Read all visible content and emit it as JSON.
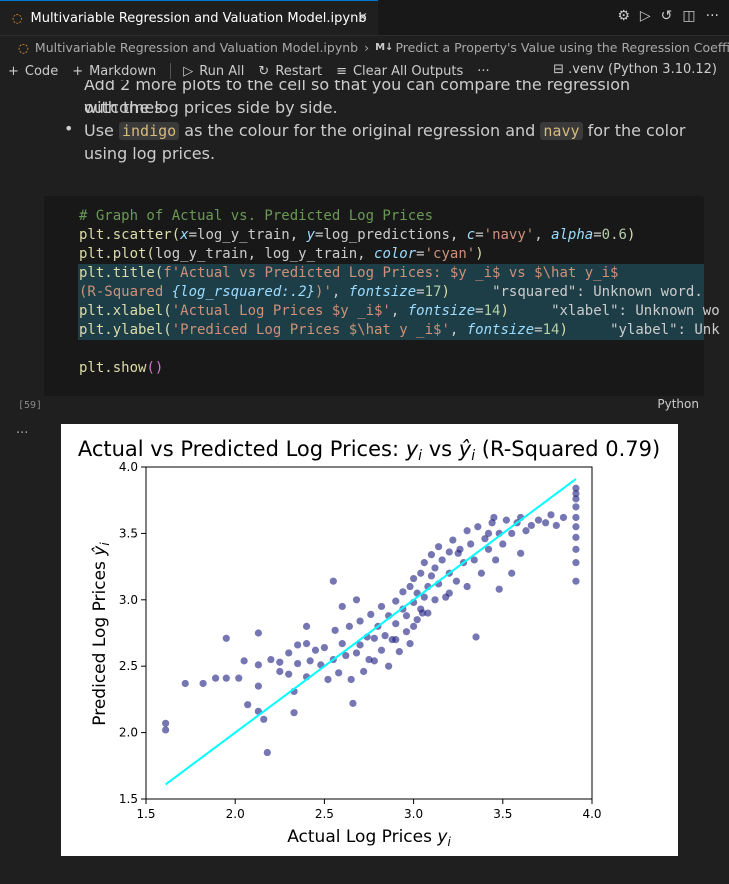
{
  "tab": {
    "title": "Multivariable Regression and Valuation Model.ipynb",
    "close": "×"
  },
  "tab_actions": [
    "⚙",
    "▷",
    "↺",
    "◫",
    "···"
  ],
  "breadcrumb": {
    "file": "Multivariable Regression and Valuation Model.ipynb",
    "md_badge": "M↓",
    "section": "Predict a Property's Value using the Regression Coeffic"
  },
  "toolbar": {
    "code": "Code",
    "markdown": "Markdown",
    "run_all": "Run All",
    "restart": "Restart",
    "clear": "Clear All Outputs",
    "more": "···",
    "kernel": ".venv (Python 3.10.12)"
  },
  "markdown": {
    "line1": "Add 2 more plots to the cell so that you can compare the regression outcomes",
    "line2": "with the log prices side by side.",
    "line3_a": "Use",
    "line3_hl1": "indigo",
    "line3_b": "as the colour for the original regression and",
    "line3_hl2": "navy",
    "line3_c": "for the color",
    "line4": "using log prices."
  },
  "code": {
    "l1": "# Graph of Actual vs. Predicted Log Prices",
    "l2_fn": "plt.scatter(",
    "l2_k1": "x",
    "l2_v1": "=log_y_train, ",
    "l2_k2": "y",
    "l2_v2": "=log_predictions, ",
    "l2_k3": "c",
    "l2_v3": "=",
    "l2_s3": "'navy'",
    "l2_v4": ", ",
    "l2_k4": "alpha",
    "l2_v5": "=",
    "l2_n5": "0.6",
    "l2_end": ")",
    "l3_fn": "plt.plot(",
    "l3_v": "log_y_train, log_y_train, ",
    "l3_k": "color",
    "l3_eq": "=",
    "l3_s": "'cyan'",
    "l3_end": ")",
    "l4_fn": "plt.title(",
    "l4_s": "f'Actual vs Predicted Log Prices: $y _i$ vs $\\hat y_i$",
    "l5_s": "(R-Squared ",
    "l5_v": "{log_rsquared:.2}",
    "l5_s2": ")'",
    "l5_v2": ", ",
    "l5_k": "fontsize",
    "l5_eq": "=",
    "l5_n": "17",
    "l5_end": ")",
    "l5_warn": "\"rsquared\": Unknown word.",
    "l6_fn": "plt.xlabel(",
    "l6_s": "'Actual Log Prices $y _i$'",
    "l6_v": ", ",
    "l6_k": "fontsize",
    "l6_eq": "=",
    "l6_n": "14",
    "l6_end": ")",
    "l6_warn": "\"xlabel\": Unknown wo",
    "l7_fn": "plt.ylabel(",
    "l7_s": "'Prediced Log Prices $\\hat y _i$'",
    "l7_v": ", ",
    "l7_k": "fontsize",
    "l7_eq": "=",
    "l7_n": "14",
    "l7_end": ")",
    "l7_warn": "\"ylabel\": Unk",
    "l9_fn": "plt.show",
    "l9_end": "()"
  },
  "cell": {
    "exec_count": "[59]",
    "language": "Python",
    "output_dots": "···"
  },
  "colors": {
    "scatter": "#1a1a80",
    "line": "#00ffff"
  },
  "chart_data": {
    "type": "scatter",
    "title": "Actual vs Predicted Log Prices: y_i vs ŷ_i (R-Squared 0.79)",
    "title_main": "Actual vs Predicted Log Prices: ",
    "title_y": "y",
    "title_i": "i",
    "title_vs": " vs ",
    "title_yhat": "ŷ",
    "title_i2": "i",
    "title_rsq": " (R-Squared 0.79)",
    "xlabel_main": "Actual Log Prices ",
    "xlabel_y": "y",
    "xlabel_i": "i",
    "ylabel_main": "Prediced Log Prices ",
    "ylabel_y": "ŷ",
    "ylabel_i": "i",
    "xlim": [
      1.5,
      4.0
    ],
    "ylim": [
      1.5,
      4.0
    ],
    "xticks": [
      "1.5",
      "2.0",
      "2.5",
      "3.0",
      "3.5",
      "4.0"
    ],
    "yticks": [
      "1.5",
      "2.0",
      "2.5",
      "3.0",
      "3.5",
      "4.0"
    ],
    "line": {
      "x": [
        1.61,
        3.91
      ],
      "y": [
        1.61,
        3.91
      ]
    },
    "points": [
      [
        1.61,
        2.07
      ],
      [
        1.61,
        2.02
      ],
      [
        1.72,
        2.37
      ],
      [
        1.82,
        2.37
      ],
      [
        1.89,
        2.41
      ],
      [
        1.95,
        2.41
      ],
      [
        2.02,
        2.41
      ],
      [
        1.95,
        2.71
      ],
      [
        2.05,
        2.54
      ],
      [
        2.13,
        2.75
      ],
      [
        2.13,
        2.51
      ],
      [
        2.13,
        2.35
      ],
      [
        2.07,
        2.21
      ],
      [
        2.13,
        2.16
      ],
      [
        2.16,
        2.1
      ],
      [
        2.18,
        1.85
      ],
      [
        2.25,
        2.53
      ],
      [
        2.25,
        2.46
      ],
      [
        2.3,
        2.6
      ],
      [
        2.3,
        2.44
      ],
      [
        2.33,
        2.31
      ],
      [
        2.33,
        2.15
      ],
      [
        2.35,
        2.66
      ],
      [
        2.35,
        2.52
      ],
      [
        2.4,
        2.67
      ],
      [
        2.4,
        2.42
      ],
      [
        2.42,
        2.54
      ],
      [
        2.45,
        2.62
      ],
      [
        2.48,
        2.51
      ],
      [
        2.5,
        2.64
      ],
      [
        2.52,
        2.4
      ],
      [
        2.55,
        2.55
      ],
      [
        2.56,
        2.77
      ],
      [
        2.58,
        2.45
      ],
      [
        2.6,
        2.67
      ],
      [
        2.62,
        2.58
      ],
      [
        2.64,
        2.8
      ],
      [
        2.66,
        2.22
      ],
      [
        2.68,
        2.6
      ],
      [
        2.7,
        2.66
      ],
      [
        2.7,
        2.84
      ],
      [
        2.72,
        2.46
      ],
      [
        2.74,
        2.72
      ],
      [
        2.76,
        2.89
      ],
      [
        2.78,
        2.54
      ],
      [
        2.78,
        2.71
      ],
      [
        2.8,
        2.8
      ],
      [
        2.82,
        2.95
      ],
      [
        2.82,
        2.62
      ],
      [
        2.84,
        2.73
      ],
      [
        2.86,
        2.88
      ],
      [
        2.86,
        2.5
      ],
      [
        2.88,
        2.7
      ],
      [
        2.9,
        2.99
      ],
      [
        2.9,
        2.82
      ],
      [
        2.92,
        2.61
      ],
      [
        2.94,
        2.93
      ],
      [
        2.94,
        3.06
      ],
      [
        2.96,
        2.76
      ],
      [
        2.96,
        2.88
      ],
      [
        2.98,
        3.1
      ],
      [
        2.98,
        2.67
      ],
      [
        3.0,
        2.98
      ],
      [
        3.0,
        3.16
      ],
      [
        3.02,
        2.85
      ],
      [
        3.02,
        3.05
      ],
      [
        3.04,
        3.2
      ],
      [
        3.04,
        2.93
      ],
      [
        3.06,
        3.02
      ],
      [
        3.06,
        3.28
      ],
      [
        3.08,
        3.1
      ],
      [
        3.08,
        2.9
      ],
      [
        3.1,
        3.18
      ],
      [
        3.1,
        3.34
      ],
      [
        3.12,
        3.0
      ],
      [
        3.12,
        3.24
      ],
      [
        3.14,
        3.4
      ],
      [
        3.14,
        3.12
      ],
      [
        3.16,
        3.3
      ],
      [
        3.18,
        3.02
      ],
      [
        3.2,
        3.36
      ],
      [
        3.2,
        3.2
      ],
      [
        3.22,
        3.45
      ],
      [
        3.24,
        3.14
      ],
      [
        3.26,
        3.38
      ],
      [
        3.28,
        3.28
      ],
      [
        3.3,
        3.52
      ],
      [
        3.3,
        3.1
      ],
      [
        3.32,
        3.42
      ],
      [
        3.34,
        3.3
      ],
      [
        3.36,
        3.55
      ],
      [
        3.38,
        3.2
      ],
      [
        3.4,
        3.46
      ],
      [
        3.42,
        3.38
      ],
      [
        3.44,
        3.58
      ],
      [
        3.46,
        3.3
      ],
      [
        3.48,
        3.5
      ],
      [
        3.5,
        3.42
      ],
      [
        3.52,
        3.6
      ],
      [
        3.55,
        3.5
      ],
      [
        3.58,
        3.58
      ],
      [
        3.6,
        3.62
      ],
      [
        3.63,
        3.52
      ],
      [
        3.66,
        3.56
      ],
      [
        3.7,
        3.6
      ],
      [
        3.74,
        3.58
      ],
      [
        3.77,
        3.64
      ],
      [
        3.8,
        3.56
      ],
      [
        3.84,
        3.62
      ],
      [
        3.91,
        3.84
      ],
      [
        3.91,
        3.8
      ],
      [
        3.91,
        3.76
      ],
      [
        3.91,
        3.7
      ],
      [
        3.91,
        3.62
      ],
      [
        3.91,
        3.55
      ],
      [
        3.91,
        3.47
      ],
      [
        3.91,
        3.38
      ],
      [
        3.91,
        3.28
      ],
      [
        3.91,
        3.14
      ],
      [
        2.55,
        3.14
      ],
      [
        3.55,
        3.2
      ],
      [
        3.6,
        3.35
      ],
      [
        3.35,
        2.72
      ],
      [
        3.48,
        3.08
      ],
      [
        2.4,
        2.8
      ],
      [
        2.6,
        2.95
      ],
      [
        2.68,
        3.0
      ],
      [
        2.2,
        2.55
      ],
      [
        3.42,
        3.5
      ],
      [
        3.45,
        3.62
      ],
      [
        3.2,
        3.05
      ],
      [
        3.05,
        2.9
      ],
      [
        3.25,
        3.35
      ],
      [
        3.0,
        2.8
      ],
      [
        2.9,
        2.7
      ],
      [
        2.75,
        2.55
      ],
      [
        2.65,
        2.4
      ]
    ]
  }
}
